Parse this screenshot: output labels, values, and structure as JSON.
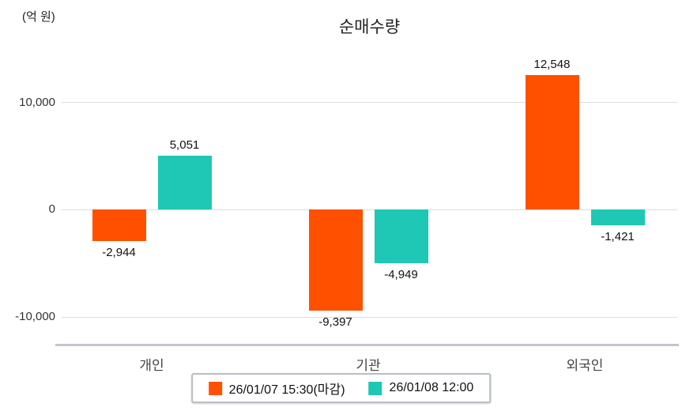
{
  "chart_data": {
    "type": "bar",
    "title": "순매수량",
    "unit_label": "(억 원)",
    "categories": [
      "개인",
      "기관",
      "외국인"
    ],
    "series": [
      {
        "name": "26/01/07 15:30(마감)",
        "color": "#ff5000",
        "values": [
          -2944,
          -9397,
          12548
        ]
      },
      {
        "name": "26/01/08 12:00",
        "color": "#1ec8b4",
        "values": [
          5051,
          -4949,
          -1421
        ]
      }
    ],
    "value_labels": [
      [
        "-2,944",
        "-9,397",
        "12,548"
      ],
      [
        "5,051",
        "-4,949",
        "-1,421"
      ]
    ],
    "yticks": [
      10000,
      0,
      -10000
    ],
    "ytick_labels": [
      "10,000",
      "0",
      "-10,000"
    ],
    "ylim": [
      -12500,
      15500
    ],
    "grid": true,
    "legend_position": "bottom"
  }
}
